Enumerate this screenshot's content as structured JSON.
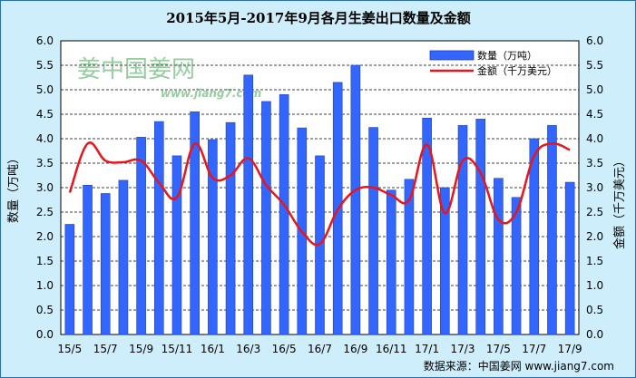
{
  "chart_data": {
    "type": "bar",
    "title": "2015年5月-2017年9月各月生姜出口数量及金额",
    "ylabel_left": "数量（万吨）",
    "ylabel_right": "金额（千万美元）",
    "ylim": [
      0,
      6
    ],
    "yticks": [
      "0.0",
      "0.5",
      "1.0",
      "1.5",
      "2.0",
      "2.5",
      "3.0",
      "3.5",
      "4.0",
      "4.5",
      "5.0",
      "5.5",
      "6.0"
    ],
    "categories": [
      "15/5",
      "15/6",
      "15/7",
      "15/8",
      "15/9",
      "15/10",
      "15/11",
      "15/12",
      "16/1",
      "16/2",
      "16/3",
      "16/4",
      "16/5",
      "16/6",
      "16/7",
      "16/8",
      "16/9",
      "16/10",
      "16/11",
      "16/12",
      "17/1",
      "17/2",
      "17/3",
      "17/4",
      "17/5",
      "17/6",
      "17/7",
      "17/8",
      "17/9"
    ],
    "xtick_labels": [
      "15/5",
      "",
      "15/7",
      "",
      "15/9",
      "",
      "15/11",
      "",
      "16/1",
      "",
      "16/3",
      "",
      "16/5",
      "",
      "16/7",
      "",
      "16/9",
      "",
      "16/11",
      "",
      "17/1",
      "",
      "17/3",
      "",
      "17/5",
      "",
      "17/7",
      "",
      "17/9"
    ],
    "series": [
      {
        "name": "数量（万吨）",
        "kind": "bar",
        "color": "#3366ff",
        "values": [
          2.25,
          3.05,
          2.88,
          3.15,
          4.03,
          4.35,
          3.65,
          4.55,
          3.98,
          4.33,
          5.3,
          4.76,
          4.9,
          4.22,
          3.65,
          5.15,
          5.5,
          4.23,
          2.95,
          3.17,
          4.42,
          3.0,
          4.27,
          4.4,
          3.19,
          2.8,
          4.0,
          4.27,
          3.11
        ]
      },
      {
        "name": "金额（千万美元）",
        "kind": "line",
        "color": "#e8161b",
        "values": [
          2.9,
          3.9,
          3.55,
          3.52,
          3.55,
          3.1,
          2.8,
          3.9,
          3.2,
          3.25,
          3.6,
          3.05,
          2.65,
          2.1,
          1.85,
          2.55,
          2.95,
          3.0,
          2.85,
          2.75,
          3.88,
          2.48,
          3.55,
          3.3,
          2.35,
          2.5,
          3.65,
          3.9,
          3.77
        ]
      }
    ],
    "grid": true,
    "legend_position": "top-right"
  },
  "watermark": {
    "text": "姜中国姜网",
    "url": "www.jiang7.com"
  },
  "source": "数据来源：中国姜网 www.jiang7.com",
  "colors": {
    "background": "#cdeefa",
    "plot_background": "#ffffff",
    "bar": "#3366ff",
    "line": "#e8161b",
    "watermark": "#2f9a44"
  }
}
